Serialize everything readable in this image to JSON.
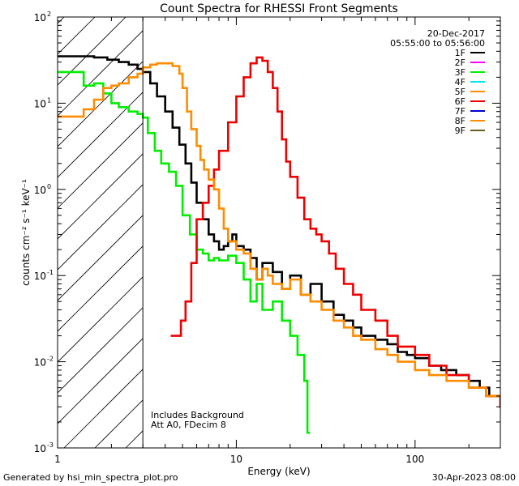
{
  "chart_data": {
    "type": "line",
    "title": "Count Spectra for RHESSI Front Segments",
    "xlabel": "Energy (keV)",
    "ylabel": "counts cm⁻² s⁻¹ keV⁻¹",
    "xscale": "log",
    "yscale": "log",
    "xlim": [
      1,
      300
    ],
    "ylim": [
      0.001,
      100
    ],
    "x_tick_labels": [
      {
        "value": 1,
        "label": "1"
      },
      {
        "value": 10,
        "label": "10"
      },
      {
        "value": 100,
        "label": "100"
      }
    ],
    "y_tick_labels": [
      {
        "value": 100,
        "mant": "10",
        "exp": "2"
      },
      {
        "value": 10,
        "mant": "10",
        "exp": "1"
      },
      {
        "value": 1,
        "mant": "10",
        "exp": "0"
      },
      {
        "value": 0.1,
        "mant": "10",
        "exp": "-1"
      },
      {
        "value": 0.01,
        "mant": "10",
        "exp": "-2"
      },
      {
        "value": 0.001,
        "mant": "10",
        "exp": "-3"
      }
    ],
    "date": "20-Dec-2017",
    "time_range": "05:55:00 to 05:56:00",
    "annotation_lines": [
      "Includes Background",
      "Att A0, FDecim 8"
    ],
    "hatched_region_xmax": 3,
    "legend": [
      {
        "label": "1F",
        "color": "#000000"
      },
      {
        "label": "2F",
        "color": "#ff00ff"
      },
      {
        "label": "3F",
        "color": "#00ee00"
      },
      {
        "label": "4F",
        "color": "#00e5ee"
      },
      {
        "label": "5F",
        "color": "#ff8c00"
      },
      {
        "label": "6F",
        "color": "#ee0000"
      },
      {
        "label": "7F",
        "color": "#0000cd"
      },
      {
        "label": "8F",
        "color": "#ff8c00"
      },
      {
        "label": "9F",
        "color": "#6b5a1a"
      }
    ],
    "series": [
      {
        "name": "1F",
        "color": "#000000",
        "x": [
          1,
          1.3,
          1.6,
          1.9,
          2.2,
          2.5,
          2.8,
          3.0,
          3.3,
          3.6,
          4.0,
          4.4,
          4.8,
          5.2,
          5.6,
          6.0,
          6.5,
          7.0,
          7.5,
          8.0,
          8.5,
          9.0,
          9.5,
          10,
          11,
          12,
          13,
          14,
          16,
          18,
          20,
          23,
          26,
          30,
          35,
          40,
          45,
          50,
          60,
          70,
          80,
          90,
          100,
          120,
          140,
          170,
          200,
          230,
          260,
          290
        ],
        "values": [
          35,
          35,
          34,
          32,
          30,
          28,
          25,
          23,
          17,
          12,
          8,
          5.2,
          3.3,
          2.0,
          1.2,
          0.7,
          0.45,
          0.3,
          0.25,
          0.2,
          0.22,
          0.25,
          0.3,
          0.22,
          0.2,
          0.16,
          0.09,
          0.14,
          0.11,
          0.07,
          0.1,
          0.06,
          0.08,
          0.05,
          0.035,
          0.03,
          0.025,
          0.02,
          0.018,
          0.016,
          0.013,
          0.012,
          0.011,
          0.009,
          0.008,
          0.007,
          0.006,
          0.005,
          0.004,
          0.004
        ]
      },
      {
        "name": "3F",
        "color": "#00ee00",
        "x": [
          1,
          1.2,
          1.4,
          1.6,
          1.8,
          2.0,
          2.2,
          2.5,
          2.8,
          3.0,
          3.2,
          3.5,
          3.8,
          4.2,
          4.6,
          5.0,
          5.5,
          6.0,
          6.5,
          7.0,
          7.5,
          8.0,
          8.5,
          9.0,
          10,
          11,
          12,
          13,
          14,
          16,
          18,
          20,
          22,
          24,
          25
        ],
        "values": [
          23,
          23,
          16,
          17,
          13,
          10,
          9,
          8,
          7.5,
          6.8,
          4.5,
          2.8,
          2.0,
          1.6,
          1.1,
          0.5,
          0.3,
          0.2,
          0.18,
          0.15,
          0.16,
          0.15,
          0.15,
          0.17,
          0.14,
          0.09,
          0.05,
          0.08,
          0.04,
          0.05,
          0.03,
          0.02,
          0.012,
          0.006,
          0.0015
        ]
      },
      {
        "name": "6F",
        "color": "#ee0000",
        "x": [
          4.3,
          4.6,
          4.9,
          5.2,
          5.6,
          6.0,
          6.5,
          7.0,
          7.5,
          8.0,
          9.0,
          10,
          11,
          12,
          13,
          14,
          15,
          16,
          17,
          18,
          19,
          20,
          22,
          24,
          26,
          28,
          30,
          33,
          36,
          40,
          45,
          50,
          60,
          70,
          80,
          100,
          120,
          150,
          200,
          250,
          300
        ],
        "values": [
          0.02,
          0.02,
          0.03,
          0.05,
          0.14,
          0.45,
          0.7,
          1.1,
          1.7,
          2.8,
          6.0,
          12,
          20,
          29,
          34,
          31,
          23,
          15,
          8.0,
          3.8,
          2.1,
          1.4,
          0.8,
          0.45,
          0.35,
          0.3,
          0.25,
          0.18,
          0.12,
          0.08,
          0.06,
          0.04,
          0.03,
          0.02,
          0.015,
          0.012,
          0.009,
          0.007,
          0.005,
          0.004,
          0.003
        ]
      },
      {
        "name": "8F",
        "color": "#ff8c00",
        "x": [
          1,
          1.2,
          1.4,
          1.6,
          1.8,
          2.0,
          2.2,
          2.5,
          2.8,
          3.0,
          3.3,
          3.6,
          4.0,
          4.4,
          4.8,
          5.0,
          5.3,
          5.6,
          6.0,
          6.3,
          6.6,
          7.0,
          7.5,
          8.0,
          8.5,
          9.0,
          10,
          11,
          12,
          13,
          14,
          15,
          16,
          18,
          20,
          23,
          26,
          30,
          35,
          40,
          45,
          50,
          60,
          70,
          80,
          100,
          120,
          150,
          200,
          250,
          290
        ],
        "values": [
          7.0,
          7.0,
          8.5,
          11,
          15,
          16,
          17,
          20,
          22,
          26,
          28,
          29,
          29,
          27,
          22,
          15,
          8.0,
          5.0,
          3.2,
          2.2,
          1.7,
          1.3,
          1.0,
          0.6,
          0.35,
          0.25,
          0.2,
          0.18,
          0.12,
          0.09,
          0.12,
          0.1,
          0.08,
          0.07,
          0.09,
          0.06,
          0.05,
          0.04,
          0.03,
          0.025,
          0.02,
          0.018,
          0.014,
          0.012,
          0.01,
          0.008,
          0.007,
          0.006,
          0.005,
          0.004,
          0.004
        ]
      }
    ]
  },
  "footer": {
    "left": "Generated by hsi_min_spectra_plot.pro",
    "right": "30-Apr-2023 08:00"
  }
}
